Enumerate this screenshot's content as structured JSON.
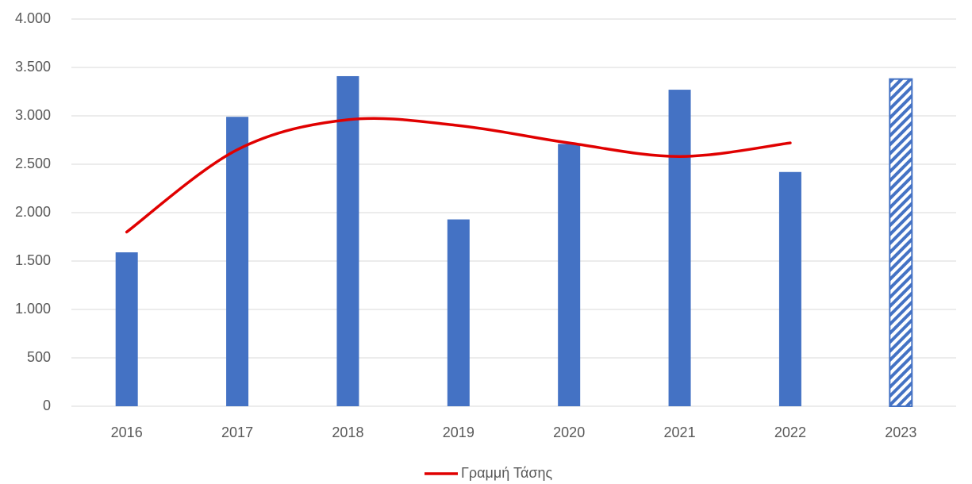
{
  "chart_data": {
    "type": "bar",
    "categories": [
      "2016",
      "2017",
      "2018",
      "2019",
      "2020",
      "2021",
      "2022",
      "2023"
    ],
    "series": [
      {
        "name": null,
        "type": "bar",
        "color": "#4472c4",
        "values": [
          1590,
          2990,
          3410,
          1930,
          2710,
          3270,
          2420,
          3380
        ],
        "hatched": [
          false,
          false,
          false,
          false,
          false,
          false,
          false,
          true
        ]
      },
      {
        "name": "Γραμμή Τάσης",
        "type": "line",
        "color": "#e00000",
        "smooth": true,
        "values": [
          1800,
          2650,
          2960,
          2900,
          2720,
          2580,
          2720,
          null
        ]
      }
    ],
    "ylim": [
      0,
      4000
    ],
    "yticks": [
      0,
      500,
      {
        "value": 1000,
        "label": "1.000"
      },
      {
        "value": 1500,
        "label": "1.500"
      },
      {
        "value": 2000,
        "label": "2.000"
      },
      {
        "value": 2500,
        "label": "2.500"
      },
      {
        "value": 3000,
        "label": "3.000"
      },
      {
        "value": 3500,
        "label": "3.500"
      },
      {
        "value": 4000,
        "label": "4.000"
      }
    ],
    "grid": true,
    "legend": "bottom"
  }
}
